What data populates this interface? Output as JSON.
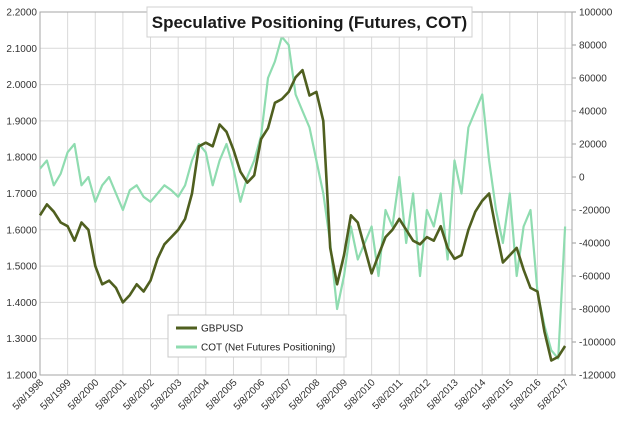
{
  "chart_data": {
    "type": "line",
    "title": "Speculative Positioning (Futures, COT)",
    "xlabel": "",
    "ylabel": "",
    "grid": true,
    "legend_placement": "bottom-left",
    "x_range": [
      1998.35,
      2017.6
    ],
    "x_ticks": [
      "5/8/1998",
      "5/8/1999",
      "5/8/2000",
      "5/8/2001",
      "5/8/2002",
      "5/8/2003",
      "5/8/2004",
      "5/8/2005",
      "5/8/2006",
      "5/8/2007",
      "5/8/2008",
      "5/8/2009",
      "5/8/2010",
      "5/8/2011",
      "5/8/2012",
      "5/8/2013",
      "5/8/2014",
      "5/8/2015",
      "5/8/2016",
      "5/8/2017"
    ],
    "y_left": {
      "range": [
        1.2,
        2.2
      ],
      "ticks": [
        "1.2000",
        "1.3000",
        "1.4000",
        "1.5000",
        "1.6000",
        "1.7000",
        "1.8000",
        "1.9000",
        "2.0000",
        "2.1000",
        "2.2000"
      ]
    },
    "y_right": {
      "range": [
        -120000,
        100000
      ],
      "ticks": [
        "100000",
        "80000",
        "60000",
        "40000",
        "20000",
        "0",
        "-20000",
        "-40000",
        "-60000",
        "-80000",
        "-100000",
        "-120000"
      ]
    },
    "series": [
      {
        "name": "GBPUSD",
        "axis": "left",
        "color": "#4f5f1f",
        "x": [
          1998.35,
          1998.6,
          1998.85,
          1999.1,
          1999.35,
          1999.6,
          1999.85,
          2000.1,
          2000.35,
          2000.6,
          2000.85,
          2001.1,
          2001.35,
          2001.6,
          2001.85,
          2002.1,
          2002.35,
          2002.6,
          2002.85,
          2003.1,
          2003.35,
          2003.6,
          2003.85,
          2004.1,
          2004.35,
          2004.6,
          2004.85,
          2005.1,
          2005.35,
          2005.6,
          2005.85,
          2006.1,
          2006.35,
          2006.6,
          2006.85,
          2007.1,
          2007.35,
          2007.6,
          2007.85,
          2008.1,
          2008.35,
          2008.6,
          2008.85,
          2009.1,
          2009.35,
          2009.6,
          2009.85,
          2010.1,
          2010.35,
          2010.6,
          2010.85,
          2011.1,
          2011.35,
          2011.6,
          2011.85,
          2012.1,
          2012.35,
          2012.6,
          2012.85,
          2013.1,
          2013.35,
          2013.6,
          2013.85,
          2014.1,
          2014.35,
          2014.6,
          2014.85,
          2015.1,
          2015.35,
          2015.6,
          2015.85,
          2016.1,
          2016.35,
          2016.6,
          2016.85,
          2017.1,
          2017.35
        ],
        "values": [
          1.64,
          1.67,
          1.65,
          1.62,
          1.61,
          1.57,
          1.62,
          1.6,
          1.5,
          1.45,
          1.46,
          1.44,
          1.4,
          1.42,
          1.45,
          1.43,
          1.46,
          1.52,
          1.56,
          1.58,
          1.6,
          1.63,
          1.7,
          1.83,
          1.84,
          1.83,
          1.89,
          1.87,
          1.82,
          1.76,
          1.73,
          1.75,
          1.85,
          1.88,
          1.95,
          1.96,
          1.98,
          2.02,
          2.04,
          1.97,
          1.98,
          1.9,
          1.55,
          1.45,
          1.53,
          1.64,
          1.62,
          1.55,
          1.48,
          1.53,
          1.58,
          1.6,
          1.63,
          1.6,
          1.57,
          1.56,
          1.58,
          1.57,
          1.61,
          1.55,
          1.52,
          1.53,
          1.6,
          1.65,
          1.68,
          1.7,
          1.6,
          1.51,
          1.53,
          1.55,
          1.49,
          1.44,
          1.43,
          1.32,
          1.24,
          1.25,
          1.28
        ]
      },
      {
        "name": "COT (Net Futures Positioning)",
        "axis": "right",
        "color": "#8fdcb0",
        "x": [
          1998.35,
          1998.6,
          1998.85,
          1999.1,
          1999.35,
          1999.6,
          1999.85,
          2000.1,
          2000.35,
          2000.6,
          2000.85,
          2001.1,
          2001.35,
          2001.6,
          2001.85,
          2002.1,
          2002.35,
          2002.6,
          2002.85,
          2003.1,
          2003.35,
          2003.6,
          2003.85,
          2004.1,
          2004.35,
          2004.6,
          2004.85,
          2005.1,
          2005.35,
          2005.6,
          2005.85,
          2006.1,
          2006.35,
          2006.6,
          2006.85,
          2007.1,
          2007.35,
          2007.6,
          2007.85,
          2008.1,
          2008.35,
          2008.6,
          2008.85,
          2009.1,
          2009.35,
          2009.6,
          2009.85,
          2010.1,
          2010.35,
          2010.6,
          2010.85,
          2011.1,
          2011.35,
          2011.6,
          2011.85,
          2012.1,
          2012.35,
          2012.6,
          2012.85,
          2013.1,
          2013.35,
          2013.6,
          2013.85,
          2014.1,
          2014.35,
          2014.6,
          2014.85,
          2015.1,
          2015.35,
          2015.6,
          2015.85,
          2016.1,
          2016.35,
          2016.6,
          2016.85,
          2017.1,
          2017.35
        ],
        "values": [
          5000,
          10000,
          -5000,
          2000,
          15000,
          20000,
          -5000,
          0,
          -15000,
          -5000,
          0,
          -10000,
          -20000,
          -8000,
          -5000,
          -12000,
          -15000,
          -10000,
          -5000,
          -8000,
          -12000,
          -5000,
          10000,
          20000,
          15000,
          -5000,
          10000,
          20000,
          5000,
          -15000,
          0,
          10000,
          25000,
          60000,
          70000,
          85000,
          80000,
          50000,
          40000,
          30000,
          10000,
          -10000,
          -40000,
          -80000,
          -60000,
          -30000,
          -50000,
          -40000,
          -30000,
          -60000,
          -20000,
          -30000,
          0,
          -40000,
          -10000,
          -60000,
          -20000,
          -30000,
          -10000,
          -50000,
          10000,
          -10000,
          30000,
          40000,
          50000,
          10000,
          -20000,
          -40000,
          -10000,
          -60000,
          -30000,
          -20000,
          -70000,
          -90000,
          -105000,
          -110000,
          -30000
        ]
      }
    ]
  }
}
